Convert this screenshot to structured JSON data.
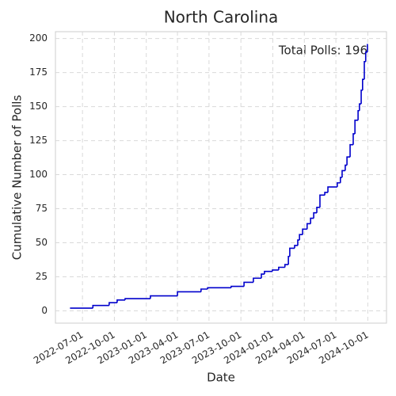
{
  "chart_data": {
    "type": "line",
    "drawstyle": "steps-post",
    "title": "North Carolina",
    "xlabel": "Date",
    "ylabel": "Cumulative Number of Polls",
    "annotation": "Total Polls: 196",
    "color": "#0000cc",
    "grid": true,
    "x": [
      "2022-05-26",
      "2022-07-31",
      "2022-09-16",
      "2022-10-09",
      "2022-11-01",
      "2023-01-13",
      "2023-04-01",
      "2023-06-08",
      "2023-06-27",
      "2023-09-03",
      "2023-10-10",
      "2023-11-06",
      "2023-11-29",
      "2023-12-08",
      "2023-12-31",
      "2024-01-18",
      "2024-02-05",
      "2024-02-15",
      "2024-02-19",
      "2024-03-04",
      "2024-03-13",
      "2024-03-18",
      "2024-03-27",
      "2024-04-09",
      "2024-04-19",
      "2024-04-28",
      "2024-05-07",
      "2024-05-16",
      "2024-05-30",
      "2024-06-08",
      "2024-07-05",
      "2024-07-14",
      "2024-07-19",
      "2024-07-28",
      "2024-08-02",
      "2024-08-11",
      "2024-08-20",
      "2024-08-25",
      "2024-09-03",
      "2024-09-07",
      "2024-09-12",
      "2024-09-16",
      "2024-09-21",
      "2024-09-25",
      "2024-09-30"
    ],
    "values": [
      2,
      4,
      6,
      8,
      9,
      11,
      14,
      16,
      17,
      18,
      21,
      24,
      27,
      29,
      30,
      32,
      34,
      40,
      46,
      48,
      52,
      56,
      60,
      64,
      68,
      72,
      76,
      85,
      87,
      91,
      94,
      98,
      103,
      107,
      113,
      122,
      130,
      140,
      147,
      152,
      162,
      170,
      183,
      190,
      196
    ],
    "xlim": [
      "2022-04-14",
      "2024-11-24"
    ],
    "xticks": [
      {
        "value": "2022-07-01",
        "label": "2022-07-01"
      },
      {
        "value": "2022-10-01",
        "label": "2022-10-01"
      },
      {
        "value": "2023-01-01",
        "label": "2023-01-01"
      },
      {
        "value": "2023-04-01",
        "label": "2023-04-01"
      },
      {
        "value": "2023-07-01",
        "label": "2023-07-01"
      },
      {
        "value": "2023-10-01",
        "label": "2023-10-01"
      },
      {
        "value": "2024-01-01",
        "label": "2024-01-01"
      },
      {
        "value": "2024-04-01",
        "label": "2024-04-01"
      },
      {
        "value": "2024-07-01",
        "label": "2024-07-01"
      },
      {
        "value": "2024-10-01",
        "label": "2024-10-01"
      }
    ],
    "ylim": [
      -9,
      205
    ],
    "yticks": [
      0,
      25,
      50,
      75,
      100,
      125,
      150,
      175,
      200
    ]
  }
}
